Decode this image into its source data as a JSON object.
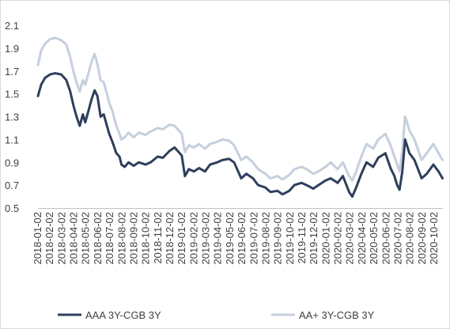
{
  "chart_data": {
    "type": "line",
    "title": "",
    "xlabel": "",
    "ylabel": "",
    "ylim": [
      0.5,
      2.1
    ],
    "y_ticks": [
      "2.1",
      "1.9",
      "1.7",
      "1.5",
      "1.3",
      "1.1",
      "0.9",
      "0.7",
      "0.5"
    ],
    "x_ticks": [
      "2018-01-02",
      "2018-02-02",
      "2018-03-02",
      "2018-04-02",
      "2018-05-02",
      "2018-06-02",
      "2018-07-02",
      "2018-08-02",
      "2018-09-02",
      "2018-10-02",
      "2018-11-02",
      "2018-12-02",
      "2019-01-02",
      "2019-02-02",
      "2019-03-02",
      "2019-04-02",
      "2019-05-02",
      "2019-06-02",
      "2019-07-02",
      "2019-08-02",
      "2019-09-02",
      "2019-10-02",
      "2019-11-02",
      "2019-12-02",
      "2020-01-02",
      "2020-02-02",
      "2020-03-02",
      "2020-04-02",
      "2020-05-02",
      "2020-06-02",
      "2020-07-02",
      "2020-08-02",
      "2020-09-02",
      "2020-10-02"
    ],
    "grid": false,
    "legend_position": "bottom",
    "series": [
      {
        "name": "AAA 3Y-CGB 3Y",
        "color": "#2e3f5c",
        "points": [
          [
            "2018-01-02",
            1.48
          ],
          [
            "2018-01-10",
            1.58
          ],
          [
            "2018-01-20",
            1.64
          ],
          [
            "2018-02-02",
            1.67
          ],
          [
            "2018-02-15",
            1.68
          ],
          [
            "2018-03-02",
            1.67
          ],
          [
            "2018-03-15",
            1.62
          ],
          [
            "2018-03-25",
            1.52
          ],
          [
            "2018-04-02",
            1.4
          ],
          [
            "2018-04-10",
            1.3
          ],
          [
            "2018-04-18",
            1.22
          ],
          [
            "2018-04-26",
            1.32
          ],
          [
            "2018-05-02",
            1.25
          ],
          [
            "2018-05-10",
            1.35
          ],
          [
            "2018-05-18",
            1.45
          ],
          [
            "2018-05-26",
            1.53
          ],
          [
            "2018-06-02",
            1.48
          ],
          [
            "2018-06-10",
            1.3
          ],
          [
            "2018-06-18",
            1.32
          ],
          [
            "2018-06-26",
            1.22
          ],
          [
            "2018-07-02",
            1.15
          ],
          [
            "2018-07-10",
            1.08
          ],
          [
            "2018-07-20",
            0.98
          ],
          [
            "2018-07-28",
            0.95
          ],
          [
            "2018-08-02",
            0.88
          ],
          [
            "2018-08-10",
            0.86
          ],
          [
            "2018-08-20",
            0.9
          ],
          [
            "2018-09-02",
            0.87
          ],
          [
            "2018-09-15",
            0.9
          ],
          [
            "2018-10-02",
            0.88
          ],
          [
            "2018-10-15",
            0.9
          ],
          [
            "2018-11-02",
            0.95
          ],
          [
            "2018-11-15",
            0.94
          ],
          [
            "2018-12-02",
            1.0
          ],
          [
            "2018-12-15",
            1.03
          ],
          [
            "2019-01-02",
            0.96
          ],
          [
            "2019-01-10",
            0.78
          ],
          [
            "2019-01-20",
            0.84
          ],
          [
            "2019-02-02",
            0.82
          ],
          [
            "2019-02-15",
            0.85
          ],
          [
            "2019-03-02",
            0.82
          ],
          [
            "2019-03-15",
            0.88
          ],
          [
            "2019-04-02",
            0.9
          ],
          [
            "2019-04-15",
            0.92
          ],
          [
            "2019-05-02",
            0.93
          ],
          [
            "2019-05-15",
            0.9
          ],
          [
            "2019-06-02",
            0.76
          ],
          [
            "2019-06-15",
            0.8
          ],
          [
            "2019-07-02",
            0.76
          ],
          [
            "2019-07-15",
            0.7
          ],
          [
            "2019-08-02",
            0.68
          ],
          [
            "2019-08-15",
            0.64
          ],
          [
            "2019-09-02",
            0.65
          ],
          [
            "2019-09-15",
            0.62
          ],
          [
            "2019-10-02",
            0.65
          ],
          [
            "2019-10-15",
            0.7
          ],
          [
            "2019-11-02",
            0.72
          ],
          [
            "2019-11-15",
            0.7
          ],
          [
            "2019-12-02",
            0.67
          ],
          [
            "2019-12-15",
            0.7
          ],
          [
            "2020-01-02",
            0.74
          ],
          [
            "2020-01-15",
            0.76
          ],
          [
            "2020-02-02",
            0.72
          ],
          [
            "2020-02-15",
            0.78
          ],
          [
            "2020-03-02",
            0.64
          ],
          [
            "2020-03-10",
            0.6
          ],
          [
            "2020-03-20",
            0.68
          ],
          [
            "2020-04-02",
            0.8
          ],
          [
            "2020-04-15",
            0.9
          ],
          [
            "2020-05-02",
            0.86
          ],
          [
            "2020-05-15",
            0.94
          ],
          [
            "2020-06-02",
            0.98
          ],
          [
            "2020-06-15",
            0.85
          ],
          [
            "2020-06-25",
            0.78
          ],
          [
            "2020-07-02",
            0.7
          ],
          [
            "2020-07-08",
            0.66
          ],
          [
            "2020-07-15",
            0.82
          ],
          [
            "2020-07-22",
            1.1
          ],
          [
            "2020-08-02",
            0.98
          ],
          [
            "2020-08-15",
            0.92
          ],
          [
            "2020-09-02",
            0.76
          ],
          [
            "2020-09-15",
            0.8
          ],
          [
            "2020-10-02",
            0.88
          ],
          [
            "2020-10-15",
            0.82
          ],
          [
            "2020-10-25",
            0.76
          ]
        ]
      },
      {
        "name": "AA+ 3Y-CGB 3Y",
        "color": "#c5cfdd",
        "points": [
          [
            "2018-01-02",
            1.75
          ],
          [
            "2018-01-10",
            1.88
          ],
          [
            "2018-01-20",
            1.94
          ],
          [
            "2018-02-02",
            1.98
          ],
          [
            "2018-02-15",
            1.99
          ],
          [
            "2018-03-02",
            1.97
          ],
          [
            "2018-03-15",
            1.93
          ],
          [
            "2018-03-25",
            1.82
          ],
          [
            "2018-04-02",
            1.7
          ],
          [
            "2018-04-10",
            1.6
          ],
          [
            "2018-04-18",
            1.52
          ],
          [
            "2018-04-26",
            1.62
          ],
          [
            "2018-05-02",
            1.58
          ],
          [
            "2018-05-10",
            1.68
          ],
          [
            "2018-05-18",
            1.78
          ],
          [
            "2018-05-26",
            1.85
          ],
          [
            "2018-06-02",
            1.76
          ],
          [
            "2018-06-10",
            1.62
          ],
          [
            "2018-06-18",
            1.6
          ],
          [
            "2018-06-26",
            1.5
          ],
          [
            "2018-07-02",
            1.42
          ],
          [
            "2018-07-10",
            1.35
          ],
          [
            "2018-07-20",
            1.22
          ],
          [
            "2018-07-28",
            1.15
          ],
          [
            "2018-08-02",
            1.1
          ],
          [
            "2018-08-10",
            1.12
          ],
          [
            "2018-08-20",
            1.16
          ],
          [
            "2018-09-02",
            1.12
          ],
          [
            "2018-09-15",
            1.16
          ],
          [
            "2018-10-02",
            1.14
          ],
          [
            "2018-10-15",
            1.17
          ],
          [
            "2018-11-02",
            1.2
          ],
          [
            "2018-11-15",
            1.19
          ],
          [
            "2018-12-02",
            1.23
          ],
          [
            "2018-12-15",
            1.22
          ],
          [
            "2019-01-02",
            1.15
          ],
          [
            "2019-01-10",
            0.99
          ],
          [
            "2019-01-20",
            1.05
          ],
          [
            "2019-02-02",
            1.03
          ],
          [
            "2019-02-15",
            1.06
          ],
          [
            "2019-03-02",
            1.02
          ],
          [
            "2019-03-15",
            1.06
          ],
          [
            "2019-04-02",
            1.08
          ],
          [
            "2019-04-15",
            1.1
          ],
          [
            "2019-05-02",
            1.09
          ],
          [
            "2019-05-15",
            1.05
          ],
          [
            "2019-06-02",
            0.92
          ],
          [
            "2019-06-15",
            0.95
          ],
          [
            "2019-07-02",
            0.9
          ],
          [
            "2019-07-15",
            0.84
          ],
          [
            "2019-08-02",
            0.8
          ],
          [
            "2019-08-15",
            0.76
          ],
          [
            "2019-09-02",
            0.78
          ],
          [
            "2019-09-15",
            0.75
          ],
          [
            "2019-10-02",
            0.79
          ],
          [
            "2019-10-15",
            0.84
          ],
          [
            "2019-11-02",
            0.86
          ],
          [
            "2019-11-15",
            0.84
          ],
          [
            "2019-12-02",
            0.8
          ],
          [
            "2019-12-15",
            0.82
          ],
          [
            "2020-01-02",
            0.86
          ],
          [
            "2020-01-15",
            0.9
          ],
          [
            "2020-02-02",
            0.84
          ],
          [
            "2020-02-15",
            0.9
          ],
          [
            "2020-03-02",
            0.78
          ],
          [
            "2020-03-10",
            0.74
          ],
          [
            "2020-03-20",
            0.82
          ],
          [
            "2020-04-02",
            0.95
          ],
          [
            "2020-04-15",
            1.06
          ],
          [
            "2020-05-02",
            1.02
          ],
          [
            "2020-05-15",
            1.1
          ],
          [
            "2020-06-02",
            1.15
          ],
          [
            "2020-06-15",
            1.05
          ],
          [
            "2020-06-25",
            0.95
          ],
          [
            "2020-07-02",
            0.88
          ],
          [
            "2020-07-08",
            0.82
          ],
          [
            "2020-07-15",
            1.0
          ],
          [
            "2020-07-22",
            1.3
          ],
          [
            "2020-08-02",
            1.18
          ],
          [
            "2020-08-15",
            1.1
          ],
          [
            "2020-09-02",
            0.92
          ],
          [
            "2020-09-15",
            0.98
          ],
          [
            "2020-10-02",
            1.06
          ],
          [
            "2020-10-15",
            0.98
          ],
          [
            "2020-10-25",
            0.92
          ]
        ]
      }
    ]
  }
}
